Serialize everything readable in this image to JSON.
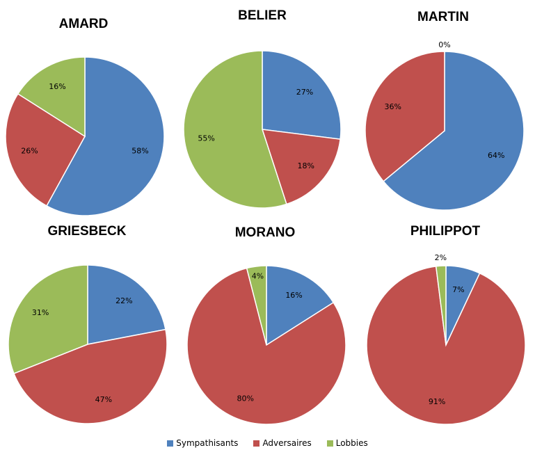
{
  "chart_data": {
    "type": "pie",
    "legend_position": "bottom",
    "series": [
      {
        "name": "Sympathisants",
        "color": "#4F81BD"
      },
      {
        "name": "Adversaires",
        "color": "#C0504D"
      },
      {
        "name": "Lobbies",
        "color": "#9BBB59"
      }
    ],
    "charts": [
      {
        "title": "AMARD",
        "values": [
          58,
          26,
          16
        ],
        "labels": [
          "58%",
          "26%",
          "16%"
        ]
      },
      {
        "title": "BELIER",
        "values": [
          27,
          18,
          55
        ],
        "labels": [
          "27%",
          "18%",
          "55%"
        ]
      },
      {
        "title": "MARTIN",
        "values": [
          64,
          36,
          0
        ],
        "labels": [
          "64%",
          "36%",
          "0%"
        ]
      },
      {
        "title": "GRIESBECK",
        "values": [
          22,
          47,
          31
        ],
        "labels": [
          "22%",
          "47%",
          "31%"
        ]
      },
      {
        "title": "MORANO",
        "values": [
          16,
          80,
          4
        ],
        "labels": [
          "16%",
          "80%",
          "4%"
        ]
      },
      {
        "title": "PHILIPPOT",
        "values": [
          7,
          91,
          2
        ],
        "labels": [
          "7%",
          "91%",
          "2%"
        ]
      }
    ]
  }
}
